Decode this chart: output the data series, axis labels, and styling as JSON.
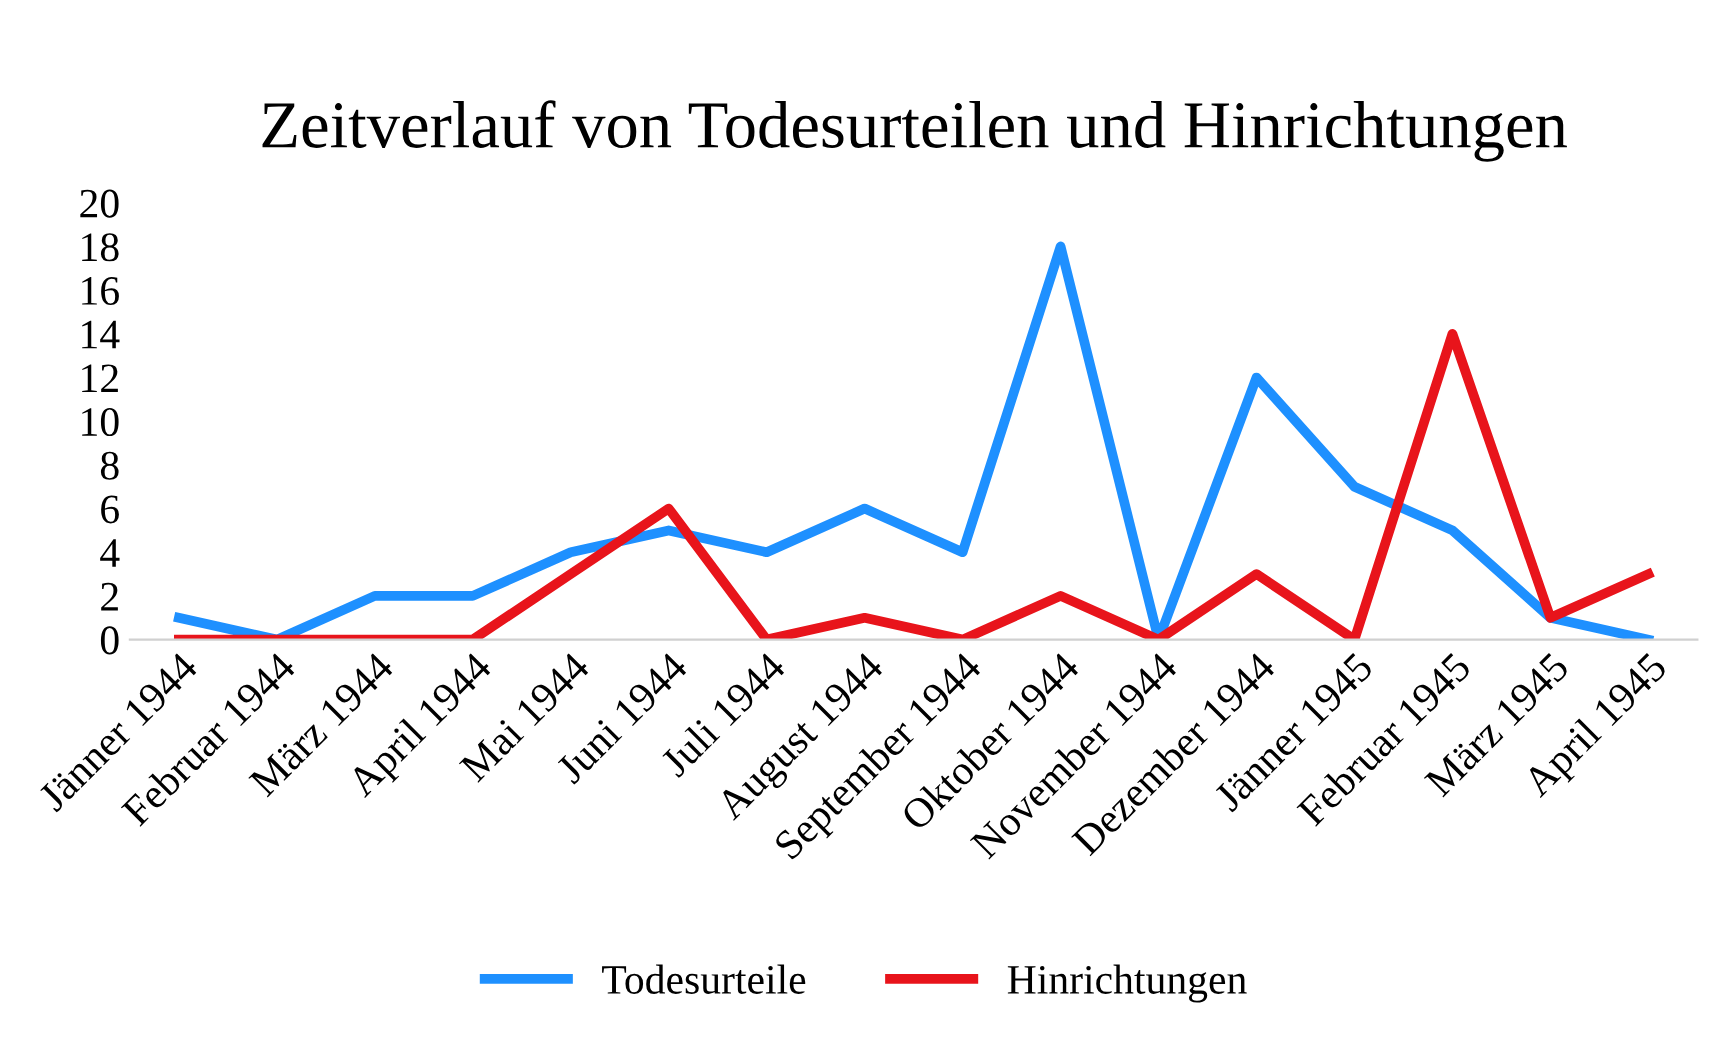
{
  "chart_data": {
    "type": "line",
    "title": "Zeitverlauf von Todesurteilen und Hinrichtungen",
    "categories": [
      "Jänner 1944",
      "Februar 1944",
      "März 1944",
      "April 1944",
      "Mai 1944",
      "Juni 1944",
      "Juli 1944",
      "August 1944",
      "September 1944",
      "Oktober 1944",
      "November 1944",
      "Dezember 1944",
      "Jänner 1945",
      "Februar 1945",
      "März 1945",
      "April 1945"
    ],
    "series": [
      {
        "name": "Todesurteile",
        "color": "#1e90ff",
        "values": [
          1,
          0,
          2,
          2,
          4,
          5,
          4,
          6,
          4,
          18,
          0,
          12,
          7,
          5,
          1,
          0
        ]
      },
      {
        "name": "Hinrichtungen",
        "color": "#e8141b",
        "values": [
          0,
          0,
          0,
          0,
          3,
          6,
          0,
          1,
          0,
          2,
          0,
          3,
          0,
          14,
          1,
          3
        ]
      }
    ],
    "ylim": [
      0,
      20
    ],
    "yticks": [
      0,
      2,
      4,
      6,
      8,
      10,
      12,
      14,
      16,
      18,
      20
    ],
    "grid": false,
    "legend": "bottom",
    "marker": "none",
    "line_style": "solid"
  }
}
